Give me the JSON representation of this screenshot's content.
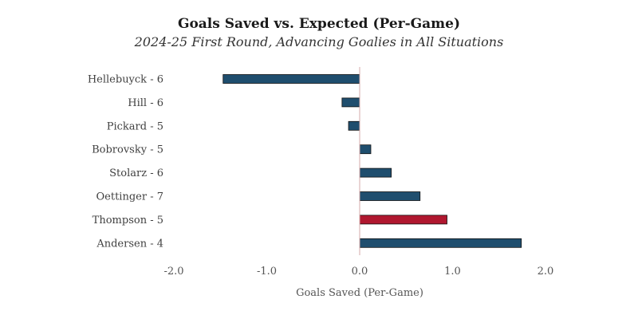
{
  "chart_data": {
    "type": "bar",
    "orientation": "horizontal",
    "title": "Goals Saved vs. Expected (Per-Game)",
    "subtitle": "2024-25 First Round, Advancing Goalies in All Situations",
    "xlabel": "Goals Saved (Per-Game)",
    "ylabel": "",
    "xlim": [
      -2.0,
      2.0
    ],
    "xticks": [
      "-2.0",
      "-1.0",
      "0.0",
      "1.0",
      "2.0"
    ],
    "grid": false,
    "categories": [
      "Hellebuyck - 6",
      "Hill - 6",
      "Pickard - 5",
      "Bobrovsky - 5",
      "Stolarz - 6",
      "Oettinger - 7",
      "Thompson - 5",
      "Andersen - 4"
    ],
    "values": [
      -1.47,
      -0.19,
      -0.12,
      0.12,
      0.34,
      0.65,
      0.94,
      1.74
    ],
    "colors": [
      "#1f4e6e",
      "#1f4e6e",
      "#1f4e6e",
      "#1f4e6e",
      "#1f4e6e",
      "#1f4e6e",
      "#b0172f",
      "#1f4e6e"
    ],
    "zero_line_color": "#d6a9a9"
  }
}
